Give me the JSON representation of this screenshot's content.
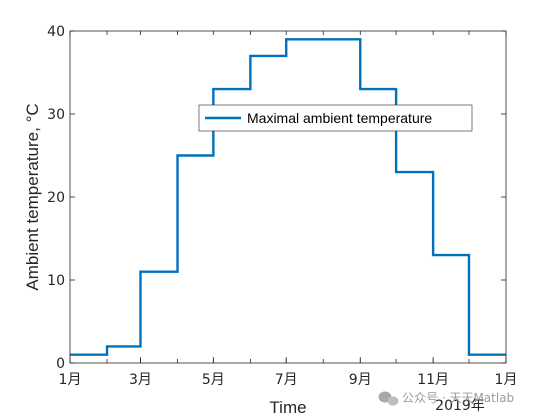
{
  "chart_data": {
    "type": "line",
    "step": true,
    "title": "",
    "xlabel": "Time",
    "ylabel": "Ambient temperature, °C",
    "x_tick_labels": [
      "1月",
      "3月",
      "5月",
      "7月",
      "9月",
      "11月",
      "1月"
    ],
    "x_secondary_label": "2019年",
    "y_ticks": [
      0,
      10,
      20,
      30,
      40
    ],
    "ylim": [
      0,
      40
    ],
    "xlim": [
      "2019-01-01",
      "2020-01-01"
    ],
    "grid": false,
    "legend_position": "upper-right-inside",
    "series": [
      {
        "name": "Maximal ambient temperature",
        "color": "#0072BD",
        "x": [
          "2019-01-01",
          "2019-02-01",
          "2019-03-01",
          "2019-04-01",
          "2019-05-01",
          "2019-06-01",
          "2019-07-01",
          "2019-08-01",
          "2019-09-01",
          "2019-10-01",
          "2019-11-01",
          "2019-12-01"
        ],
        "values": [
          1,
          2,
          11,
          25,
          33,
          37,
          39,
          39,
          33,
          23,
          13,
          1
        ]
      }
    ]
  },
  "watermark": {
    "text": "公众号 · 天天Matlab",
    "icon": "wechat-icon"
  }
}
